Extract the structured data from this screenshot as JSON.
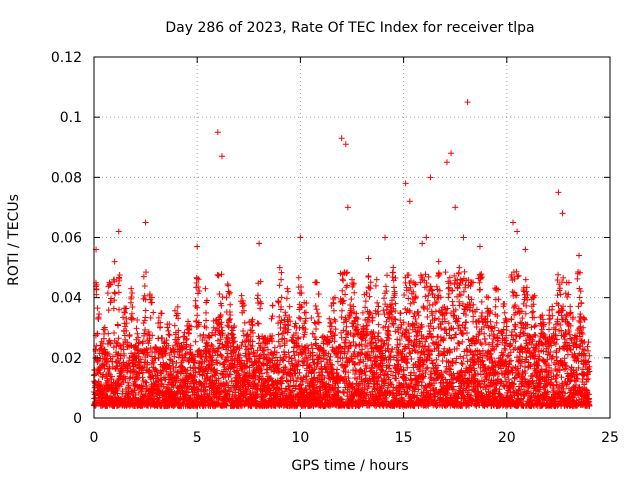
{
  "chart_data": {
    "type": "scatter",
    "title": "Day 286 of 2023, Rate Of TEC Index for receiver tlpa",
    "xlabel": "GPS time / hours",
    "ylabel": "ROTI / TECUs",
    "xlim": [
      0,
      25
    ],
    "ylim": [
      0,
      0.12
    ],
    "xticks": [
      "0",
      "5",
      "10",
      "15",
      "20",
      "25"
    ],
    "yticks": [
      "0",
      "0.02",
      "0.04",
      "0.06",
      "0.08",
      "0.1",
      "0.12"
    ],
    "grid": true,
    "marker": "+",
    "color": "#ff0000",
    "series": [
      {
        "x": [
          0.05,
          0.1,
          0.15,
          0.2,
          0.3,
          0.4,
          0.5,
          0.6,
          0.75,
          0.9,
          1.0,
          1.1,
          1.2,
          1.3,
          1.5,
          1.7,
          1.8,
          2.0,
          2.1,
          2.3,
          2.5,
          2.6,
          2.8,
          3.0,
          3.2,
          3.4,
          3.6,
          3.8,
          4.0,
          4.2,
          4.4,
          4.6,
          4.8,
          5.0,
          5.2,
          5.4,
          5.6,
          5.8,
          6.0,
          6.2,
          6.3,
          6.5,
          6.7,
          7.0,
          7.2,
          7.4,
          7.6,
          7.8,
          8.0,
          8.2,
          8.4,
          8.6,
          8.8,
          9.0,
          9.2,
          9.4,
          9.6,
          9.8,
          10.0,
          10.2,
          10.4,
          10.6,
          10.8,
          11.0,
          11.2,
          11.4,
          11.6,
          11.8,
          12.0,
          12.2,
          12.3,
          12.5,
          12.7,
          12.9,
          13.1,
          13.3,
          13.5,
          13.7,
          13.9,
          14.1,
          14.3,
          14.5,
          14.7,
          14.9,
          15.1,
          15.3,
          15.5,
          15.7,
          15.9,
          16.1,
          16.3,
          16.5,
          16.7,
          16.9,
          17.1,
          17.3,
          17.5,
          17.7,
          17.9,
          18.1,
          18.3,
          18.5,
          18.7,
          18.9,
          19.1,
          19.3,
          19.5,
          19.7,
          19.9,
          20.1,
          20.3,
          20.5,
          20.7,
          20.9,
          21.1,
          21.3,
          21.5,
          21.7,
          21.9,
          22.1,
          22.3,
          22.5,
          22.7,
          22.9,
          23.1,
          23.3,
          23.5,
          23.7,
          23.9
        ],
        "y": [
          0.012,
          0.056,
          0.02,
          0.033,
          0.015,
          0.018,
          0.022,
          0.011,
          0.045,
          0.01,
          0.052,
          0.025,
          0.062,
          0.014,
          0.035,
          0.019,
          0.043,
          0.013,
          0.028,
          0.016,
          0.065,
          0.021,
          0.04,
          0.012,
          0.03,
          0.017,
          0.024,
          0.011,
          0.034,
          0.015,
          0.02,
          0.028,
          0.013,
          0.057,
          0.018,
          0.043,
          0.022,
          0.03,
          0.095,
          0.087,
          0.016,
          0.044,
          0.025,
          0.012,
          0.038,
          0.019,
          0.027,
          0.014,
          0.058,
          0.02,
          0.016,
          0.033,
          0.012,
          0.05,
          0.03,
          0.042,
          0.018,
          0.025,
          0.06,
          0.035,
          0.015,
          0.028,
          0.045,
          0.02,
          0.017,
          0.033,
          0.038,
          0.014,
          0.093,
          0.091,
          0.07,
          0.046,
          0.03,
          0.021,
          0.041,
          0.053,
          0.028,
          0.046,
          0.017,
          0.06,
          0.035,
          0.05,
          0.022,
          0.031,
          0.078,
          0.072,
          0.045,
          0.03,
          0.058,
          0.06,
          0.08,
          0.04,
          0.052,
          0.034,
          0.085,
          0.088,
          0.07,
          0.05,
          0.06,
          0.105,
          0.045,
          0.032,
          0.057,
          0.028,
          0.04,
          0.025,
          0.043,
          0.02,
          0.035,
          0.018,
          0.065,
          0.062,
          0.03,
          0.056,
          0.022,
          0.04,
          0.015,
          0.028,
          0.018,
          0.033,
          0.025,
          0.075,
          0.068,
          0.045,
          0.035,
          0.02,
          0.054,
          0.03,
          0.015
        ]
      }
    ]
  }
}
